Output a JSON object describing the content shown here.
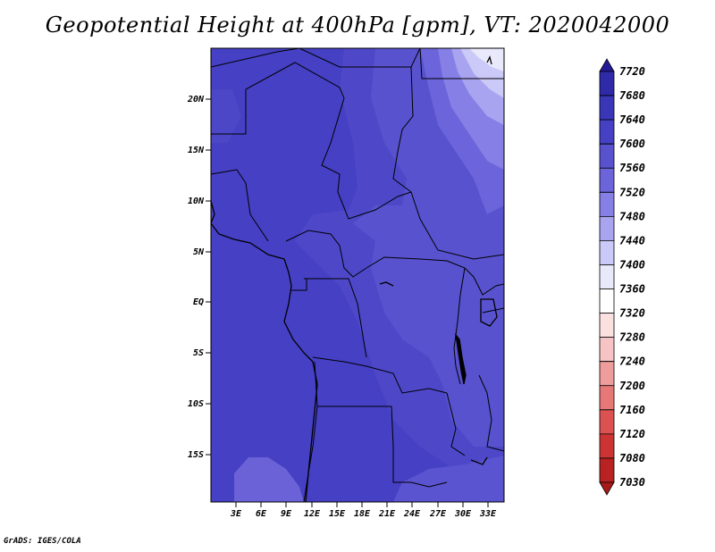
{
  "title": "Geopotential Height at 400hPa [gpm], VT: 2020042000",
  "credit": "GrADS: IGES/COLA",
  "map": {
    "lat_labels": [
      "20N",
      "15N",
      "10N",
      "5N",
      "EQ",
      "5S",
      "10S",
      "15S"
    ],
    "lon_labels": [
      "3E",
      "6E",
      "9E",
      "12E",
      "15E",
      "18E",
      "21E",
      "24E",
      "27E",
      "30E",
      "33E"
    ]
  },
  "legend": {
    "levels": [
      "7720",
      "7680",
      "7640",
      "7600",
      "7560",
      "7520",
      "7480",
      "7440",
      "7400",
      "7360",
      "7320",
      "7280",
      "7240",
      "7200",
      "7160",
      "7120",
      "7080",
      "7030"
    ],
    "colors": [
      "#241a96",
      "#2f2aa8",
      "#3a36b8",
      "#4540c4",
      "#5852ce",
      "#6c64da",
      "#8680e6",
      "#a8a4f0",
      "#cbc9f7",
      "#e9e9fb",
      "#ffffff",
      "#fbe0e0",
      "#f6c4c4",
      "#ef9c9c",
      "#e67878",
      "#dc5252",
      "#cc3434",
      "#b82222",
      "#a81a1a"
    ]
  }
}
